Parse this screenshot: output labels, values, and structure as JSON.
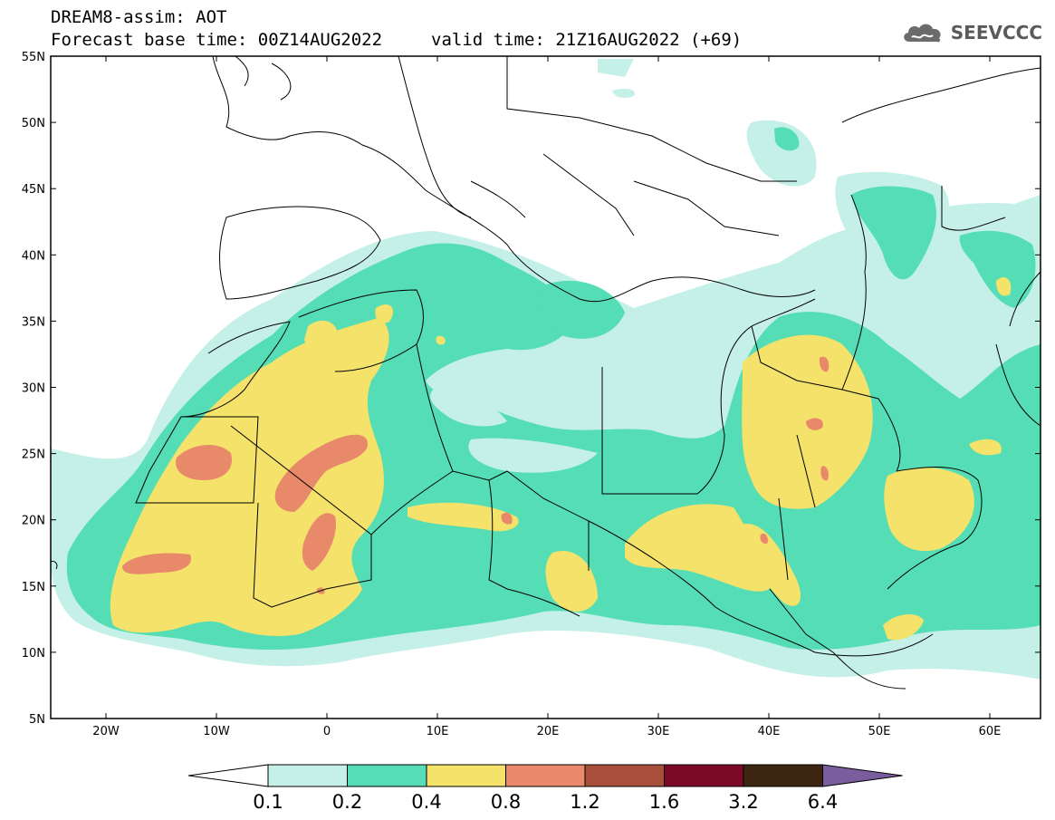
{
  "title": {
    "line1": "DREAM8-assim: AOT",
    "base_time": "Forecast base time: 00Z14AUG2022",
    "valid_time": "valid time: 21Z16AUG2022 (+69)"
  },
  "logo": {
    "text": "SEEVCCC",
    "icon": "cloud-logo-icon"
  },
  "map": {
    "lat_labels": [
      "55N",
      "50N",
      "45N",
      "40N",
      "35N",
      "30N",
      "25N",
      "20N",
      "15N",
      "10N",
      "5N"
    ],
    "lon_labels": [
      "20W",
      "10W",
      "0",
      "10E",
      "20E",
      "30E",
      "40E",
      "50E",
      "60E"
    ]
  },
  "colorbar": {
    "labels": [
      "0.1",
      "0.2",
      "0.4",
      "0.8",
      "1.2",
      "1.6",
      "3.2",
      "6.4"
    ],
    "colors": {
      "under": "#ffffff",
      "bins": [
        "#c5f0e8",
        "#55ddb5",
        "#f4e26a",
        "#e8896a",
        "#a84e3a",
        "#7a0a25",
        "#3c2612"
      ],
      "over": "#7a5d9e"
    }
  }
}
